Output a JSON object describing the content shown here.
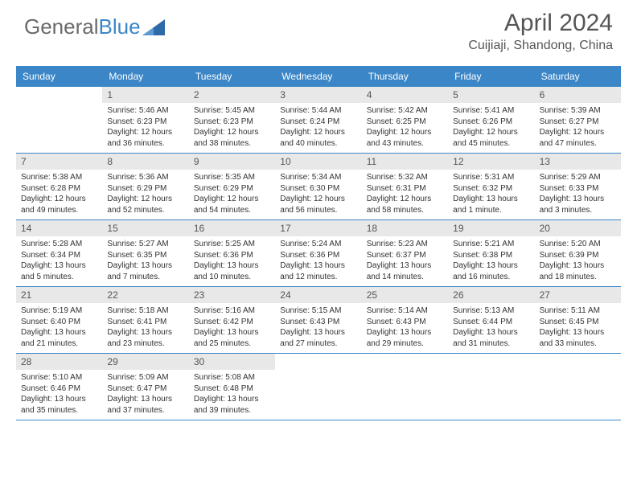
{
  "logo": {
    "text1": "General",
    "text2": "Blue"
  },
  "title": "April 2024",
  "location": "Cuijiaji, Shandong, China",
  "colors": {
    "accent": "#3b86c7",
    "daynum_bg": "#e8e8e8",
    "text_gray": "#555555",
    "body_text": "#333333"
  },
  "day_names": [
    "Sunday",
    "Monday",
    "Tuesday",
    "Wednesday",
    "Thursday",
    "Friday",
    "Saturday"
  ],
  "weeks": [
    [
      {
        "n": "",
        "sr": "",
        "ss": "",
        "dl": ""
      },
      {
        "n": "1",
        "sr": "Sunrise: 5:46 AM",
        "ss": "Sunset: 6:23 PM",
        "dl": "Daylight: 12 hours and 36 minutes."
      },
      {
        "n": "2",
        "sr": "Sunrise: 5:45 AM",
        "ss": "Sunset: 6:23 PM",
        "dl": "Daylight: 12 hours and 38 minutes."
      },
      {
        "n": "3",
        "sr": "Sunrise: 5:44 AM",
        "ss": "Sunset: 6:24 PM",
        "dl": "Daylight: 12 hours and 40 minutes."
      },
      {
        "n": "4",
        "sr": "Sunrise: 5:42 AM",
        "ss": "Sunset: 6:25 PM",
        "dl": "Daylight: 12 hours and 43 minutes."
      },
      {
        "n": "5",
        "sr": "Sunrise: 5:41 AM",
        "ss": "Sunset: 6:26 PM",
        "dl": "Daylight: 12 hours and 45 minutes."
      },
      {
        "n": "6",
        "sr": "Sunrise: 5:39 AM",
        "ss": "Sunset: 6:27 PM",
        "dl": "Daylight: 12 hours and 47 minutes."
      }
    ],
    [
      {
        "n": "7",
        "sr": "Sunrise: 5:38 AM",
        "ss": "Sunset: 6:28 PM",
        "dl": "Daylight: 12 hours and 49 minutes."
      },
      {
        "n": "8",
        "sr": "Sunrise: 5:36 AM",
        "ss": "Sunset: 6:29 PM",
        "dl": "Daylight: 12 hours and 52 minutes."
      },
      {
        "n": "9",
        "sr": "Sunrise: 5:35 AM",
        "ss": "Sunset: 6:29 PM",
        "dl": "Daylight: 12 hours and 54 minutes."
      },
      {
        "n": "10",
        "sr": "Sunrise: 5:34 AM",
        "ss": "Sunset: 6:30 PM",
        "dl": "Daylight: 12 hours and 56 minutes."
      },
      {
        "n": "11",
        "sr": "Sunrise: 5:32 AM",
        "ss": "Sunset: 6:31 PM",
        "dl": "Daylight: 12 hours and 58 minutes."
      },
      {
        "n": "12",
        "sr": "Sunrise: 5:31 AM",
        "ss": "Sunset: 6:32 PM",
        "dl": "Daylight: 13 hours and 1 minute."
      },
      {
        "n": "13",
        "sr": "Sunrise: 5:29 AM",
        "ss": "Sunset: 6:33 PM",
        "dl": "Daylight: 13 hours and 3 minutes."
      }
    ],
    [
      {
        "n": "14",
        "sr": "Sunrise: 5:28 AM",
        "ss": "Sunset: 6:34 PM",
        "dl": "Daylight: 13 hours and 5 minutes."
      },
      {
        "n": "15",
        "sr": "Sunrise: 5:27 AM",
        "ss": "Sunset: 6:35 PM",
        "dl": "Daylight: 13 hours and 7 minutes."
      },
      {
        "n": "16",
        "sr": "Sunrise: 5:25 AM",
        "ss": "Sunset: 6:36 PM",
        "dl": "Daylight: 13 hours and 10 minutes."
      },
      {
        "n": "17",
        "sr": "Sunrise: 5:24 AM",
        "ss": "Sunset: 6:36 PM",
        "dl": "Daylight: 13 hours and 12 minutes."
      },
      {
        "n": "18",
        "sr": "Sunrise: 5:23 AM",
        "ss": "Sunset: 6:37 PM",
        "dl": "Daylight: 13 hours and 14 minutes."
      },
      {
        "n": "19",
        "sr": "Sunrise: 5:21 AM",
        "ss": "Sunset: 6:38 PM",
        "dl": "Daylight: 13 hours and 16 minutes."
      },
      {
        "n": "20",
        "sr": "Sunrise: 5:20 AM",
        "ss": "Sunset: 6:39 PM",
        "dl": "Daylight: 13 hours and 18 minutes."
      }
    ],
    [
      {
        "n": "21",
        "sr": "Sunrise: 5:19 AM",
        "ss": "Sunset: 6:40 PM",
        "dl": "Daylight: 13 hours and 21 minutes."
      },
      {
        "n": "22",
        "sr": "Sunrise: 5:18 AM",
        "ss": "Sunset: 6:41 PM",
        "dl": "Daylight: 13 hours and 23 minutes."
      },
      {
        "n": "23",
        "sr": "Sunrise: 5:16 AM",
        "ss": "Sunset: 6:42 PM",
        "dl": "Daylight: 13 hours and 25 minutes."
      },
      {
        "n": "24",
        "sr": "Sunrise: 5:15 AM",
        "ss": "Sunset: 6:43 PM",
        "dl": "Daylight: 13 hours and 27 minutes."
      },
      {
        "n": "25",
        "sr": "Sunrise: 5:14 AM",
        "ss": "Sunset: 6:43 PM",
        "dl": "Daylight: 13 hours and 29 minutes."
      },
      {
        "n": "26",
        "sr": "Sunrise: 5:13 AM",
        "ss": "Sunset: 6:44 PM",
        "dl": "Daylight: 13 hours and 31 minutes."
      },
      {
        "n": "27",
        "sr": "Sunrise: 5:11 AM",
        "ss": "Sunset: 6:45 PM",
        "dl": "Daylight: 13 hours and 33 minutes."
      }
    ],
    [
      {
        "n": "28",
        "sr": "Sunrise: 5:10 AM",
        "ss": "Sunset: 6:46 PM",
        "dl": "Daylight: 13 hours and 35 minutes."
      },
      {
        "n": "29",
        "sr": "Sunrise: 5:09 AM",
        "ss": "Sunset: 6:47 PM",
        "dl": "Daylight: 13 hours and 37 minutes."
      },
      {
        "n": "30",
        "sr": "Sunrise: 5:08 AM",
        "ss": "Sunset: 6:48 PM",
        "dl": "Daylight: 13 hours and 39 minutes."
      },
      {
        "n": "",
        "sr": "",
        "ss": "",
        "dl": ""
      },
      {
        "n": "",
        "sr": "",
        "ss": "",
        "dl": ""
      },
      {
        "n": "",
        "sr": "",
        "ss": "",
        "dl": ""
      },
      {
        "n": "",
        "sr": "",
        "ss": "",
        "dl": ""
      }
    ]
  ]
}
